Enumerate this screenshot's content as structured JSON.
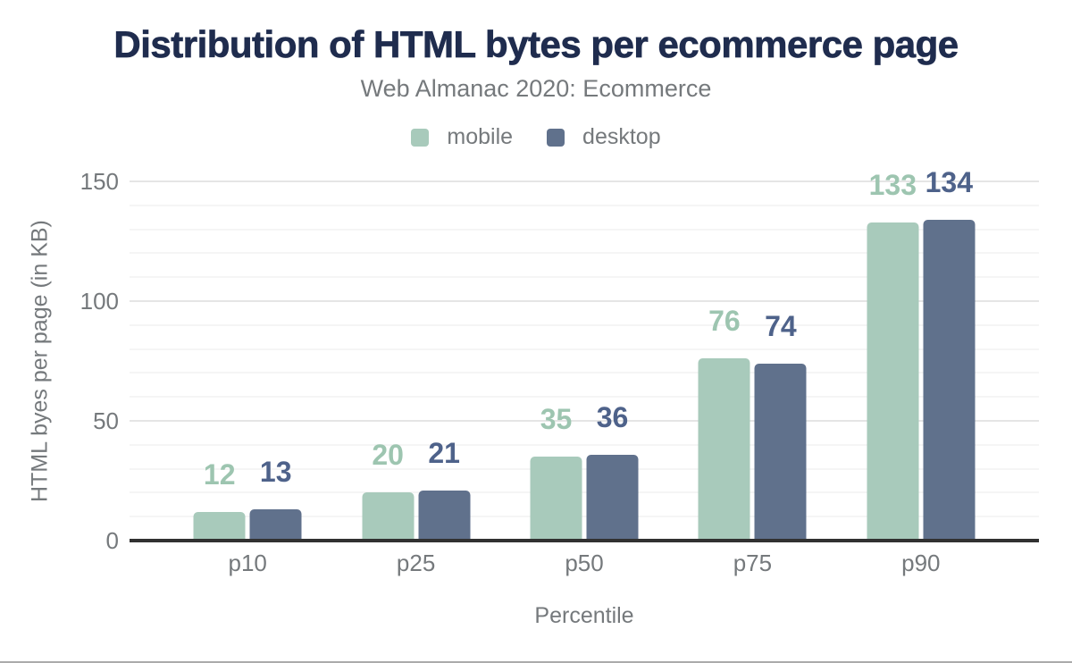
{
  "chart_data": {
    "type": "bar",
    "title": "Distribution of HTML bytes per ecommerce page",
    "subtitle": "Web Almanac 2020: Ecommerce",
    "categories": [
      "p10",
      "p25",
      "p50",
      "p75",
      "p90"
    ],
    "series": [
      {
        "name": "mobile",
        "values": [
          12,
          20,
          35,
          76,
          133
        ]
      },
      {
        "name": "desktop",
        "values": [
          13,
          21,
          36,
          74,
          134
        ]
      }
    ],
    "xlabel": "Percentile",
    "ylabel": "HTML byes per page (in KB)",
    "ylim": [
      0,
      150
    ],
    "yticks": [
      0,
      50,
      100,
      150
    ],
    "minor_grid_step": 10,
    "grid": "horizontal",
    "legend_position": "top"
  },
  "colors": {
    "title": "#1f2c4e",
    "muted_text": "#75797c",
    "mobile": "#a8cabb",
    "desktop": "#60718c",
    "mobile_value_label": "#9dc5b0",
    "desktop_value_label": "#4e628a",
    "axis_line": "#313131",
    "grid_major": "#e5e5e5",
    "grid_minor": "#f5f5f5",
    "bottom_rule": "#ababab"
  }
}
